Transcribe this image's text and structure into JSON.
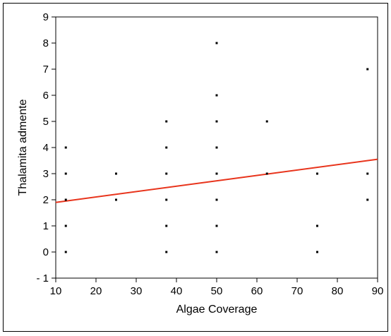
{
  "chart_data": {
    "type": "scatter",
    "title": "",
    "xlabel": "Algae Coverage",
    "ylabel": "Thalamita admente",
    "xlim": [
      10,
      90
    ],
    "ylim": [
      -1,
      9
    ],
    "x_ticks": [
      10,
      20,
      30,
      40,
      50,
      60,
      70,
      80,
      90
    ],
    "y_ticks": [
      -1,
      0,
      1,
      2,
      3,
      4,
      5,
      6,
      7,
      8,
      9
    ],
    "grid": false,
    "legend": "none",
    "points": [
      {
        "x": 12.5,
        "y": 0
      },
      {
        "x": 12.5,
        "y": 1
      },
      {
        "x": 12.5,
        "y": 2
      },
      {
        "x": 12.5,
        "y": 3
      },
      {
        "x": 12.5,
        "y": 4
      },
      {
        "x": 25,
        "y": 2
      },
      {
        "x": 25,
        "y": 3
      },
      {
        "x": 37.5,
        "y": 0
      },
      {
        "x": 37.5,
        "y": 1
      },
      {
        "x": 37.5,
        "y": 2
      },
      {
        "x": 37.5,
        "y": 3
      },
      {
        "x": 37.5,
        "y": 4
      },
      {
        "x": 37.5,
        "y": 5
      },
      {
        "x": 50,
        "y": 0
      },
      {
        "x": 50,
        "y": 1
      },
      {
        "x": 50,
        "y": 2
      },
      {
        "x": 50,
        "y": 3
      },
      {
        "x": 50,
        "y": 4
      },
      {
        "x": 50,
        "y": 5
      },
      {
        "x": 50,
        "y": 6
      },
      {
        "x": 50,
        "y": 8
      },
      {
        "x": 62.5,
        "y": 3
      },
      {
        "x": 62.5,
        "y": 5
      },
      {
        "x": 75,
        "y": 0
      },
      {
        "x": 75,
        "y": 1
      },
      {
        "x": 75,
        "y": 3
      },
      {
        "x": 87.5,
        "y": 2
      },
      {
        "x": 87.5,
        "y": 3
      },
      {
        "x": 87.5,
        "y": 7
      }
    ],
    "fit_line": {
      "x": [
        10,
        90
      ],
      "y": [
        1.9,
        3.55
      ],
      "color": "#e8341c"
    },
    "point_color": "#000000"
  }
}
